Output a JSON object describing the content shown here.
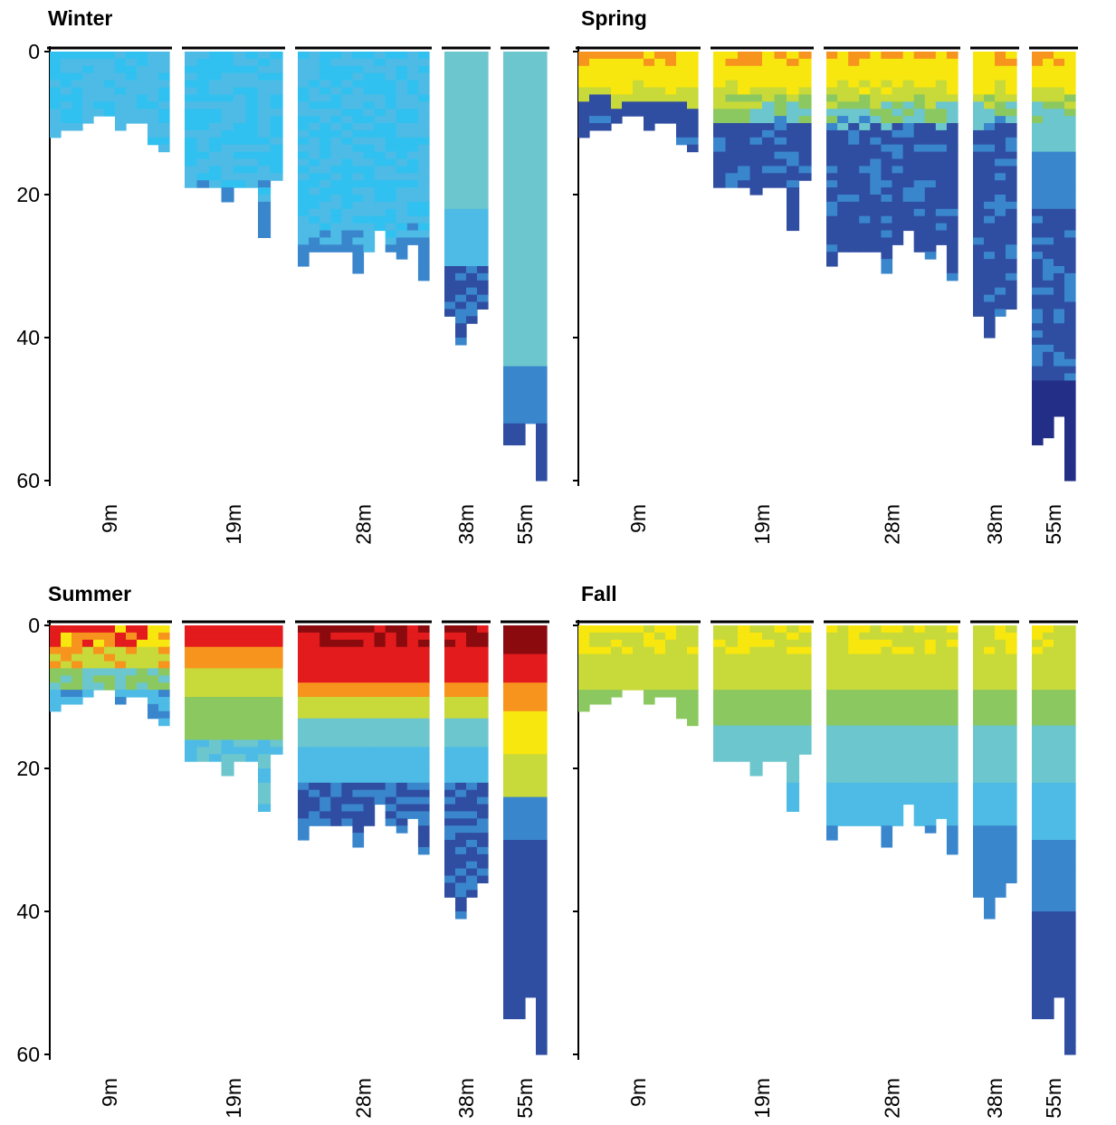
{
  "chart_data": [
    {
      "type": "heatmap",
      "title": "Winter",
      "scheme": "winter",
      "ylim": [
        0,
        60
      ],
      "yticks": [
        0,
        20,
        40,
        60
      ],
      "yaxis_ticklabels": true,
      "groups": [
        {
          "label": "9m",
          "depths": [
            12,
            11,
            11,
            10,
            9,
            9,
            11,
            10,
            10,
            13,
            14
          ]
        },
        {
          "label": "19m",
          "depths": [
            19,
            19,
            19,
            21,
            19,
            19,
            26,
            18
          ]
        },
        {
          "label": "28m",
          "depths": [
            30,
            28,
            28,
            28,
            28,
            31,
            28,
            25,
            28,
            29,
            27,
            32
          ]
        },
        {
          "label": "38m",
          "depths": [
            37,
            41,
            38,
            36
          ]
        },
        {
          "label": "55m",
          "depths": [
            55,
            55,
            52,
            60
          ]
        }
      ]
    },
    {
      "type": "heatmap",
      "title": "Spring",
      "scheme": "spring",
      "ylim": [
        0,
        60
      ],
      "yticks": [
        0,
        20,
        40,
        60
      ],
      "yaxis_ticklabels": false,
      "groups": [
        {
          "label": "9m",
          "depths": [
            12,
            11,
            11,
            10,
            9,
            9,
            11,
            10,
            10,
            13,
            14
          ]
        },
        {
          "label": "19m",
          "depths": [
            19,
            19,
            19,
            20,
            19,
            19,
            25,
            18
          ]
        },
        {
          "label": "28m",
          "depths": [
            30,
            28,
            28,
            28,
            28,
            31,
            27,
            25,
            28,
            29,
            27,
            32
          ]
        },
        {
          "label": "38m",
          "depths": [
            37,
            40,
            37,
            36
          ]
        },
        {
          "label": "55m",
          "depths": [
            55,
            54,
            51,
            60
          ]
        }
      ]
    },
    {
      "type": "heatmap",
      "title": "Summer",
      "scheme": "summer",
      "ylim": [
        0,
        60
      ],
      "yticks": [
        0,
        20,
        40,
        60
      ],
      "yaxis_ticklabels": true,
      "groups": [
        {
          "label": "9m",
          "depths": [
            12,
            11,
            11,
            10,
            9,
            9,
            11,
            10,
            10,
            13,
            14
          ]
        },
        {
          "label": "19m",
          "depths": [
            19,
            19,
            19,
            21,
            19,
            19,
            26,
            18
          ]
        },
        {
          "label": "28m",
          "depths": [
            30,
            28,
            28,
            28,
            28,
            31,
            28,
            25,
            28,
            29,
            27,
            32
          ]
        },
        {
          "label": "38m",
          "depths": [
            38,
            41,
            38,
            36
          ]
        },
        {
          "label": "55m",
          "depths": [
            55,
            55,
            52,
            60
          ]
        }
      ]
    },
    {
      "type": "heatmap",
      "title": "Fall",
      "scheme": "fall",
      "ylim": [
        0,
        60
      ],
      "yticks": [
        0,
        20,
        40,
        60
      ],
      "yaxis_ticklabels": false,
      "groups": [
        {
          "label": "9m",
          "depths": [
            12,
            11,
            11,
            10,
            9,
            9,
            11,
            10,
            10,
            13,
            14
          ]
        },
        {
          "label": "19m",
          "depths": [
            19,
            19,
            19,
            21,
            19,
            19,
            26,
            18
          ]
        },
        {
          "label": "28m",
          "depths": [
            30,
            28,
            28,
            28,
            28,
            31,
            28,
            25,
            28,
            29,
            27,
            32
          ]
        },
        {
          "label": "38m",
          "depths": [
            38,
            41,
            38,
            36
          ]
        },
        {
          "label": "55m",
          "depths": [
            55,
            55,
            52,
            60
          ]
        }
      ]
    }
  ],
  "colors": {
    "deep_red": "#8b0a0e",
    "red": "#e31b1c",
    "orange": "#f7941d",
    "yellow": "#f7e70e",
    "yellow_green": "#c8d93a",
    "green": "#8cc860",
    "teal": "#6cc6cd",
    "light_blue": "#4dbbe5",
    "cyan_blue": "#31c1f0",
    "blue": "#3a86cc",
    "dark_blue": "#2f4ea2",
    "navy": "#232f86"
  }
}
